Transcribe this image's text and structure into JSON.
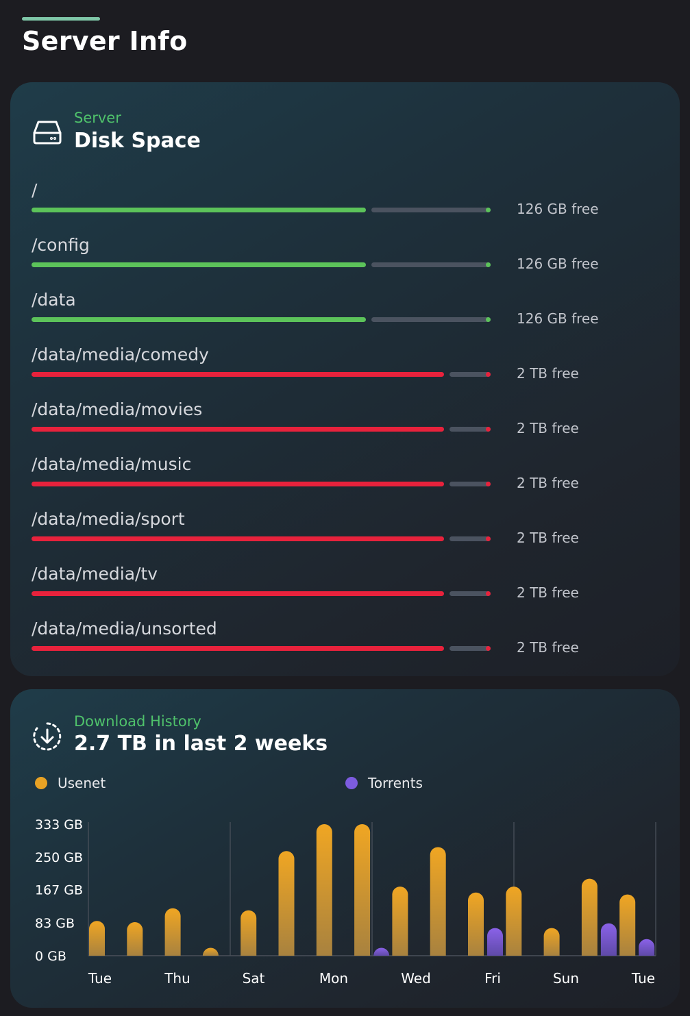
{
  "page": {
    "title": "Server Info"
  },
  "disk_card": {
    "subtitle": "Server",
    "title": "Disk Space",
    "icon": "hard-drive-icon",
    "colors": {
      "ok": "#5cc35a",
      "full": "#e8223c",
      "free_track": "#4b5360"
    },
    "mounts": [
      {
        "path": "/",
        "free": "126 GB free",
        "used_fraction": 0.74,
        "status": "ok"
      },
      {
        "path": "/config",
        "free": "126 GB free",
        "used_fraction": 0.74,
        "status": "ok"
      },
      {
        "path": "/data",
        "free": "126 GB free",
        "used_fraction": 0.74,
        "status": "ok"
      },
      {
        "path": "/data/media/comedy",
        "free": "2 TB free",
        "used_fraction": 0.91,
        "status": "full"
      },
      {
        "path": "/data/media/movies",
        "free": "2 TB free",
        "used_fraction": 0.91,
        "status": "full"
      },
      {
        "path": "/data/media/music",
        "free": "2 TB free",
        "used_fraction": 0.91,
        "status": "full"
      },
      {
        "path": "/data/media/sport",
        "free": "2 TB free",
        "used_fraction": 0.91,
        "status": "full"
      },
      {
        "path": "/data/media/tv",
        "free": "2 TB free",
        "used_fraction": 0.91,
        "status": "full"
      },
      {
        "path": "/data/media/unsorted",
        "free": "2 TB free",
        "used_fraction": 0.91,
        "status": "full"
      }
    ]
  },
  "download_card": {
    "subtitle": "Download History",
    "title": "2.7 TB in last 2 weeks",
    "icon": "download-icon",
    "legend": [
      {
        "label": "Usenet",
        "color": "#e8a224"
      },
      {
        "label": "Torrents",
        "color": "#7d5ce0"
      }
    ]
  },
  "chart_data": {
    "type": "bar",
    "y_unit": "GB",
    "ylim": [
      0,
      333
    ],
    "yticks": [
      "333 GB",
      "250 GB",
      "167 GB",
      "83 GB",
      "0 GB"
    ],
    "ytick_values": [
      333,
      250,
      167,
      83,
      0
    ],
    "x_tick_labels": [
      "Tue",
      "Thu",
      "Sat",
      "Mon",
      "Wed",
      "Fri",
      "Sun",
      "Tue"
    ],
    "days": 15,
    "series": [
      {
        "name": "Usenet",
        "color": "#e8a224",
        "values": [
          88,
          85,
          120,
          2,
          115,
          265,
          333,
          333,
          175,
          275,
          160,
          175,
          70,
          195,
          155
        ]
      },
      {
        "name": "Torrents",
        "color": "#7d5ce0",
        "values": [
          0,
          0,
          0,
          0,
          0,
          0,
          0,
          2,
          0,
          0,
          70,
          0,
          0,
          82,
          42
        ]
      }
    ]
  }
}
